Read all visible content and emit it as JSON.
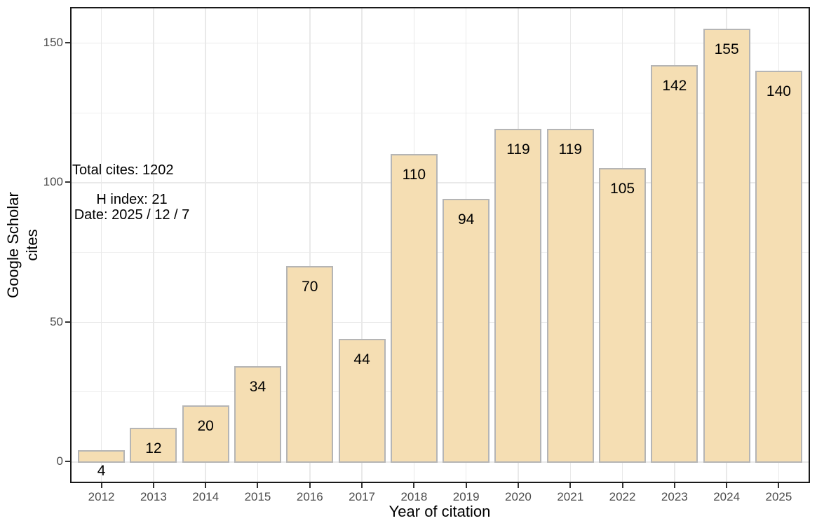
{
  "chart_data": {
    "type": "bar",
    "title": "",
    "xlabel": "Year of citation",
    "ylabel": "Google Scholar\ncites",
    "categories": [
      "2012",
      "2013",
      "2014",
      "2015",
      "2016",
      "2017",
      "2018",
      "2019",
      "2020",
      "2021",
      "2022",
      "2023",
      "2024",
      "2025"
    ],
    "values": [
      4,
      12,
      20,
      34,
      70,
      44,
      110,
      94,
      119,
      119,
      105,
      142,
      155,
      140
    ],
    "bar_value_labels": [
      "4",
      "12",
      "20",
      "34",
      "70",
      "44",
      "110",
      "94",
      "119",
      "119",
      "105",
      "142",
      "155",
      "140"
    ],
    "y_major_ticks": [
      0,
      50,
      100,
      150
    ],
    "y_tick_labels": [
      "0",
      "50",
      "100",
      "150"
    ],
    "y_minor_gridlines": [
      25,
      75,
      125
    ],
    "ylim": [
      -7.6,
      163.1
    ],
    "grid": "major horizontal and vertical light-gray gridlines, minor horizontal gridlines, white panel background, black panel border",
    "legend_position": "none",
    "annotations": [
      {
        "text": "Total cites: 1202"
      },
      {
        "text": "H index: 21\nDate: 2025 / 12 / 7"
      }
    ],
    "colors": {
      "bar_fill": "#F5DEB3",
      "bar_border": "#B5B5B5",
      "gridline": "#E9E9E9",
      "panel_border": "#1A1A1A",
      "tick_label": "#4D4D4D",
      "text": "#000000",
      "background": "#FFFFFF"
    }
  }
}
